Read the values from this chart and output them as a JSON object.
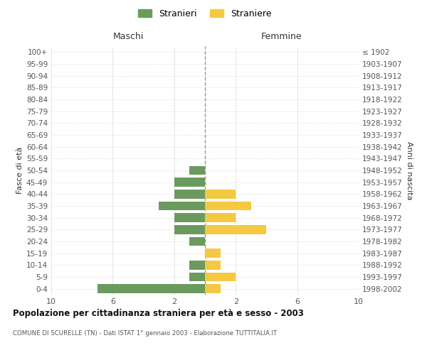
{
  "age_groups": [
    "100+",
    "95-99",
    "90-94",
    "85-89",
    "80-84",
    "75-79",
    "70-74",
    "65-69",
    "60-64",
    "55-59",
    "50-54",
    "45-49",
    "40-44",
    "35-39",
    "30-34",
    "25-29",
    "20-24",
    "15-19",
    "10-14",
    "5-9",
    "0-4"
  ],
  "birth_years": [
    "≤ 1902",
    "1903-1907",
    "1908-1912",
    "1913-1917",
    "1918-1922",
    "1923-1927",
    "1928-1932",
    "1933-1937",
    "1938-1942",
    "1943-1947",
    "1948-1952",
    "1953-1957",
    "1958-1962",
    "1963-1967",
    "1968-1972",
    "1973-1977",
    "1978-1982",
    "1983-1987",
    "1988-1992",
    "1993-1997",
    "1998-2002"
  ],
  "males": [
    0,
    0,
    0,
    0,
    0,
    0,
    0,
    0,
    0,
    0,
    1,
    2,
    2,
    3,
    2,
    2,
    1,
    0,
    1,
    1,
    7
  ],
  "females": [
    0,
    0,
    0,
    0,
    0,
    0,
    0,
    0,
    0,
    0,
    0,
    0,
    2,
    3,
    2,
    4,
    0,
    1,
    1,
    2,
    1
  ],
  "male_color": "#6b9a5e",
  "female_color": "#f5c842",
  "male_label": "Stranieri",
  "female_label": "Straniere",
  "title": "Popolazione per cittadinanza straniera per età e sesso - 2003",
  "subtitle": "COMUNE DI SCURELLE (TN) - Dati ISTAT 1° gennaio 2003 - Elaborazione TUTTITALIA.IT",
  "ylabel_left": "Fasce di età",
  "ylabel_right": "Anni di nascita",
  "xlabel_left": "Maschi",
  "xlabel_top_right": "Femmine",
  "xlim": 10,
  "background_color": "#ffffff",
  "grid_color": "#cccccc",
  "bar_height": 0.75
}
